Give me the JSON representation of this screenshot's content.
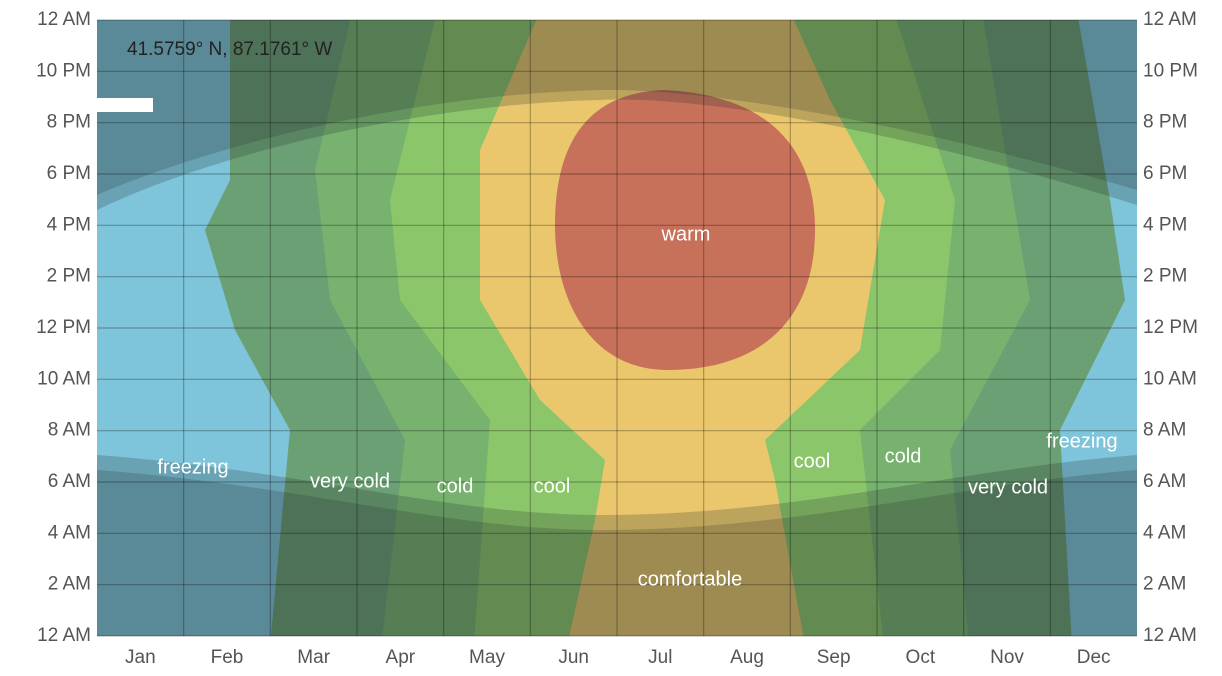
{
  "chart_data": {
    "type": "contour",
    "title": "41.5759° N, 87.1761° W",
    "categories": [
      "Jan",
      "Feb",
      "Mar",
      "Apr",
      "May",
      "Jun",
      "Jul",
      "Aug",
      "Sep",
      "Oct",
      "Nov",
      "Dec"
    ],
    "ylim": [
      0,
      24
    ],
    "yticks": [
      {
        "value": 0,
        "label": "12 AM"
      },
      {
        "value": 2,
        "label": "2 AM"
      },
      {
        "value": 4,
        "label": "4 AM"
      },
      {
        "value": 6,
        "label": "6 AM"
      },
      {
        "value": 8,
        "label": "8 AM"
      },
      {
        "value": 10,
        "label": "10 AM"
      },
      {
        "value": 12,
        "label": "12 PM"
      },
      {
        "value": 14,
        "label": "2 PM"
      },
      {
        "value": 16,
        "label": "4 PM"
      },
      {
        "value": 18,
        "label": "6 PM"
      },
      {
        "value": 20,
        "label": "8 PM"
      },
      {
        "value": 22,
        "label": "10 PM"
      },
      {
        "value": 24,
        "label": "12 AM"
      }
    ],
    "grid": true,
    "annotations": [
      "freezing",
      "very cold",
      "cold",
      "cool",
      "comfortable",
      "warm",
      "cool",
      "cold",
      "very cold",
      "freezing"
    ]
  }
}
